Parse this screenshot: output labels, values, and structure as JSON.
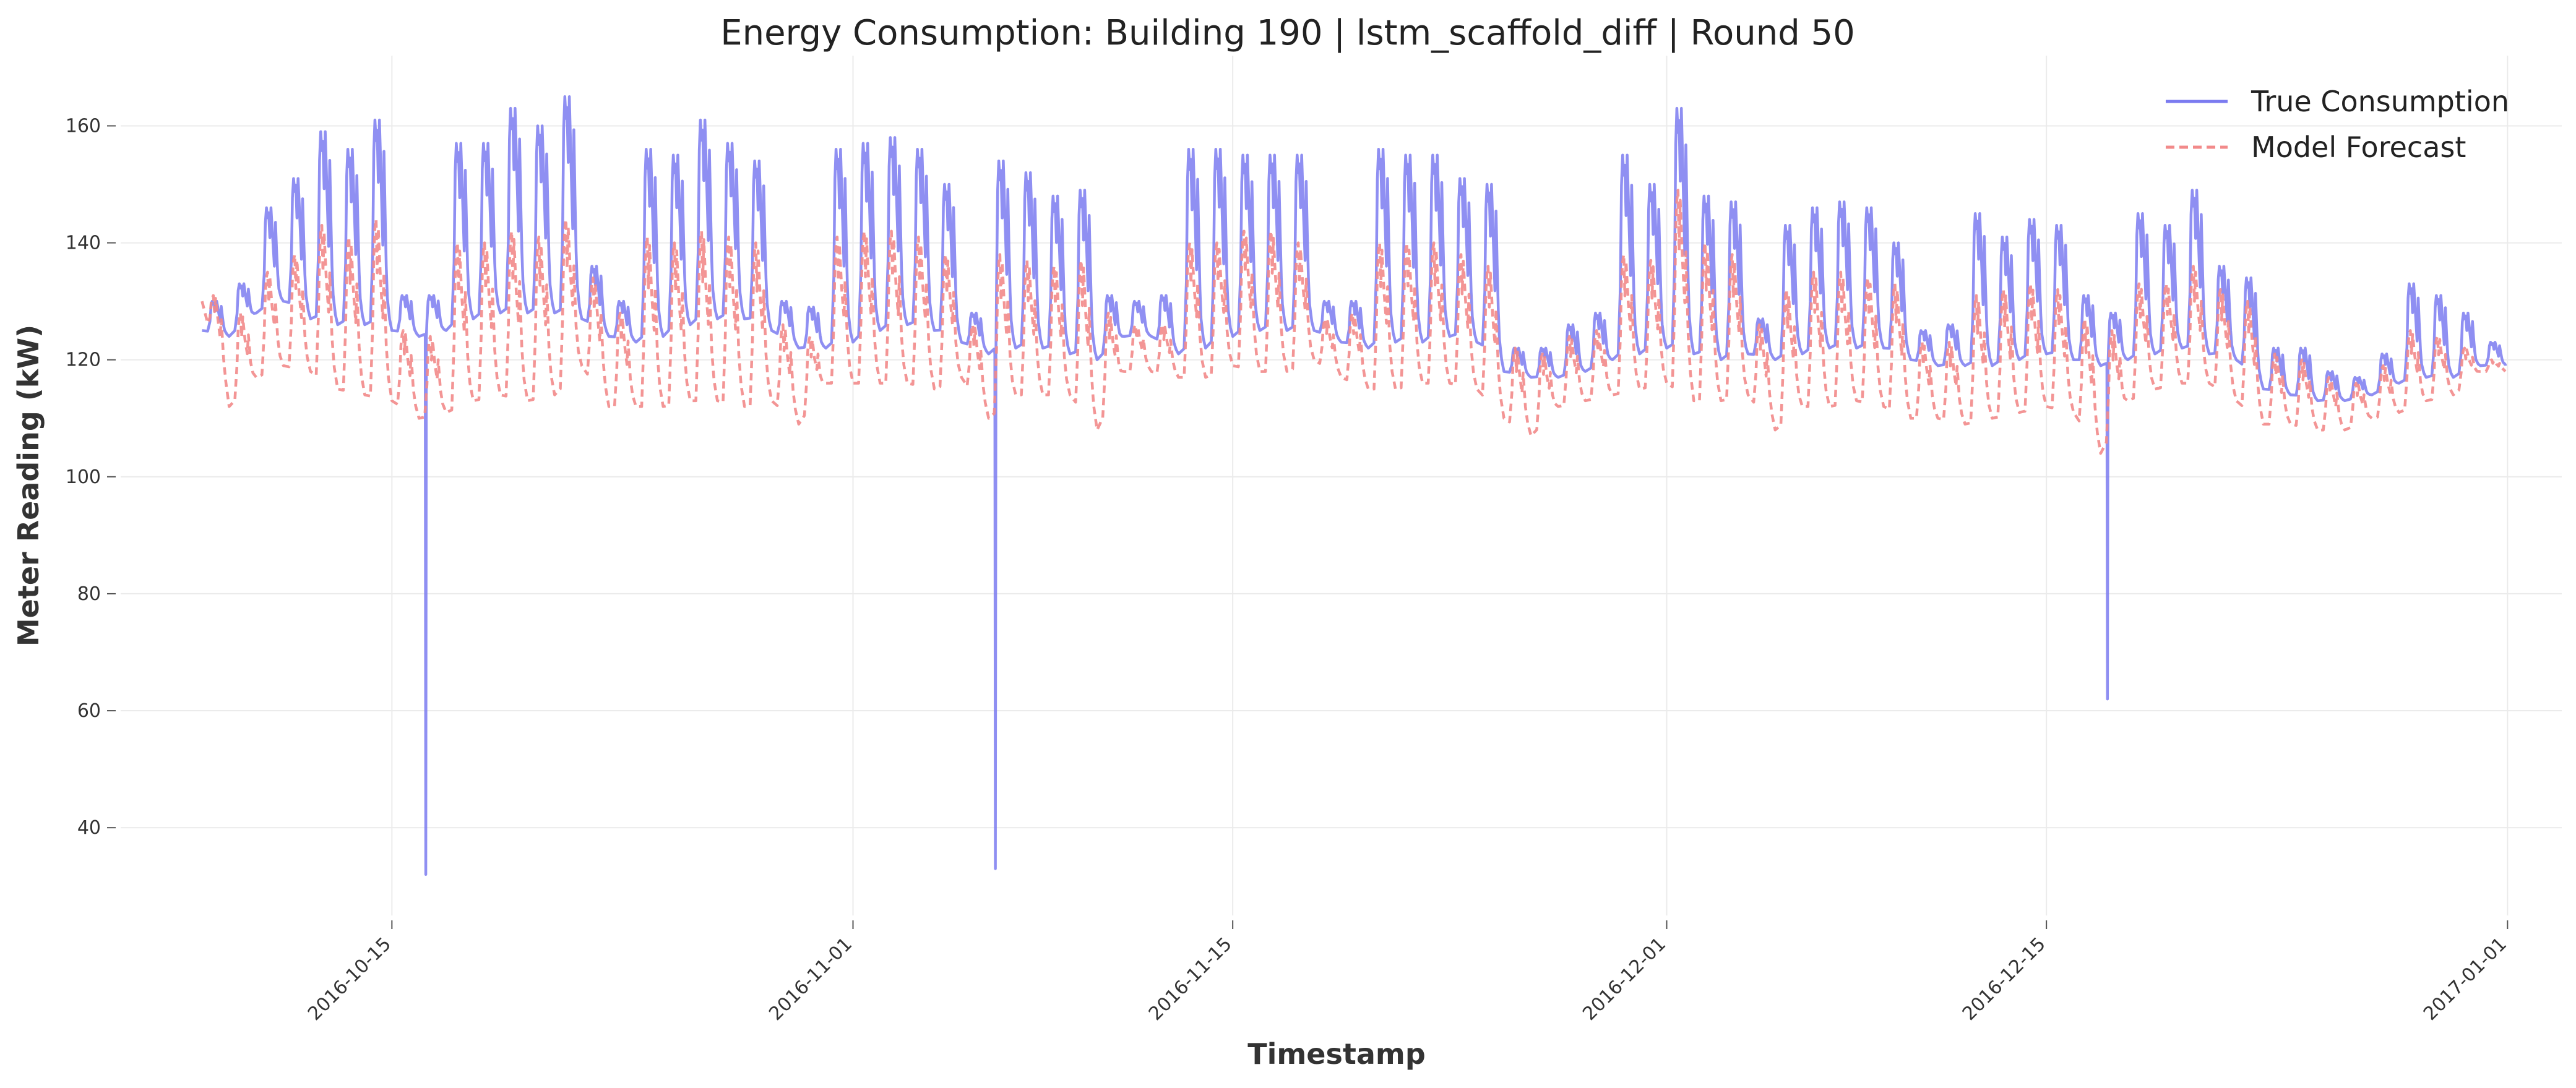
{
  "chart_data": {
    "type": "line",
    "title": "Energy Consumption: Building 190 | lstm_scaffold_diff | Round 50",
    "xlabel": "Timestamp",
    "ylabel": "Meter Reading (kW)",
    "x_range": [
      "2016-10-05",
      "2017-01-03"
    ],
    "ylim": [
      25,
      172
    ],
    "y_ticks": [
      40,
      60,
      80,
      100,
      120,
      140,
      160
    ],
    "x_ticks": [
      "2016-10-15",
      "2016-11-01",
      "2016-11-15",
      "2016-12-01",
      "2016-12-15",
      "2017-01-01"
    ],
    "grid": true,
    "legend_position": "top-right",
    "colors": {
      "true": "#7b7bf0",
      "forecast": "#f28a8a"
    },
    "series": [
      {
        "name": "True Consumption",
        "style": "solid",
        "x": [
          "2016-10-08",
          "2016-10-09",
          "2016-10-10",
          "2016-10-11",
          "2016-10-12",
          "2016-10-13",
          "2016-10-14",
          "2016-10-15",
          "2016-10-16",
          "2016-10-17",
          "2016-10-18",
          "2016-10-19",
          "2016-10-20",
          "2016-10-21",
          "2016-10-22",
          "2016-10-23",
          "2016-10-24",
          "2016-10-25",
          "2016-10-26",
          "2016-10-27",
          "2016-10-28",
          "2016-10-29",
          "2016-10-30",
          "2016-10-31",
          "2016-11-01",
          "2016-11-02",
          "2016-11-03",
          "2016-11-04",
          "2016-11-05",
          "2016-11-06",
          "2016-11-07",
          "2016-11-08",
          "2016-11-09",
          "2016-11-10",
          "2016-11-11",
          "2016-11-12",
          "2016-11-13",
          "2016-11-14",
          "2016-11-15",
          "2016-11-16",
          "2016-11-17",
          "2016-11-18",
          "2016-11-19",
          "2016-11-20",
          "2016-11-21",
          "2016-11-22",
          "2016-11-23",
          "2016-11-24",
          "2016-11-25",
          "2016-11-26",
          "2016-11-27",
          "2016-11-28",
          "2016-11-29",
          "2016-11-30",
          "2016-12-01",
          "2016-12-02",
          "2016-12-03",
          "2016-12-04",
          "2016-12-05",
          "2016-12-06",
          "2016-12-07",
          "2016-12-08",
          "2016-12-09",
          "2016-12-10",
          "2016-12-11",
          "2016-12-12",
          "2016-12-13",
          "2016-12-14",
          "2016-12-15",
          "2016-12-16",
          "2016-12-17",
          "2016-12-18",
          "2016-12-19",
          "2016-12-20",
          "2016-12-21",
          "2016-12-22",
          "2016-12-23",
          "2016-12-24",
          "2016-12-25",
          "2016-12-26",
          "2016-12-27",
          "2016-12-28",
          "2016-12-29",
          "2016-12-30",
          "2016-12-31"
        ],
        "daily_peak": [
          130,
          133,
          146,
          151,
          159,
          156,
          161,
          131,
          131,
          157,
          157,
          163,
          160,
          165,
          136,
          130,
          156,
          155,
          161,
          157,
          154,
          130,
          129,
          156,
          157,
          158,
          156,
          150,
          128,
          154,
          152,
          148,
          149,
          131,
          130,
          131,
          156,
          156,
          155,
          155,
          155,
          130,
          130,
          156,
          155,
          155,
          151,
          150,
          122,
          122,
          126,
          128,
          155,
          150,
          163,
          148,
          147,
          127,
          143,
          146,
          147,
          146,
          140,
          125,
          126,
          145,
          141,
          144,
          143,
          131,
          128,
          145,
          143,
          149,
          136,
          134,
          122,
          122,
          118,
          117,
          121,
          133,
          131,
          128,
          123
        ],
        "daily_base": [
          125,
          124,
          128,
          130,
          127,
          126,
          126,
          125,
          124,
          125,
          127,
          128,
          128,
          128,
          127,
          124,
          123,
          124,
          126,
          127,
          127,
          125,
          122,
          122,
          123,
          125,
          126,
          125,
          123,
          121,
          122,
          122,
          121,
          120,
          124,
          124,
          121,
          122,
          124,
          125,
          125,
          125,
          123,
          122,
          123,
          123,
          124,
          123,
          118,
          117,
          117,
          118,
          120,
          121,
          122,
          121,
          120,
          121,
          120,
          121,
          122,
          122,
          122,
          120,
          119,
          119,
          119,
          120,
          121,
          120,
          119,
          120,
          121,
          122,
          121,
          120,
          115,
          114,
          113,
          113,
          114,
          116,
          117,
          117,
          119
        ],
        "outliers": [
          {
            "x": "2016-10-16",
            "y": 32
          },
          {
            "x": "2016-11-06",
            "y": 33
          },
          {
            "x": "2016-12-17",
            "y": 62
          }
        ]
      },
      {
        "name": "Model Forecast",
        "style": "dashed",
        "x": [
          "2016-10-08",
          "2016-10-09",
          "2016-10-10",
          "2016-10-11",
          "2016-10-12",
          "2016-10-13",
          "2016-10-14",
          "2016-10-15",
          "2016-10-16",
          "2016-10-17",
          "2016-10-18",
          "2016-10-19",
          "2016-10-20",
          "2016-10-21",
          "2016-10-22",
          "2016-10-23",
          "2016-10-24",
          "2016-10-25",
          "2016-10-26",
          "2016-10-27",
          "2016-10-28",
          "2016-10-29",
          "2016-10-30",
          "2016-10-31",
          "2016-11-01",
          "2016-11-02",
          "2016-11-03",
          "2016-11-04",
          "2016-11-05",
          "2016-11-06",
          "2016-11-07",
          "2016-11-08",
          "2016-11-09",
          "2016-11-10",
          "2016-11-11",
          "2016-11-12",
          "2016-11-13",
          "2016-11-14",
          "2016-11-15",
          "2016-11-16",
          "2016-11-17",
          "2016-11-18",
          "2016-11-19",
          "2016-11-20",
          "2016-11-21",
          "2016-11-22",
          "2016-11-23",
          "2016-11-24",
          "2016-11-25",
          "2016-11-26",
          "2016-11-27",
          "2016-11-28",
          "2016-11-29",
          "2016-11-30",
          "2016-12-01",
          "2016-12-02",
          "2016-12-03",
          "2016-12-04",
          "2016-12-05",
          "2016-12-06",
          "2016-12-07",
          "2016-12-08",
          "2016-12-09",
          "2016-12-10",
          "2016-12-11",
          "2016-12-12",
          "2016-12-13",
          "2016-12-14",
          "2016-12-15",
          "2016-12-16",
          "2016-12-17",
          "2016-12-18",
          "2016-12-19",
          "2016-12-20",
          "2016-12-21",
          "2016-12-22",
          "2016-12-23",
          "2016-12-24",
          "2016-12-25",
          "2016-12-26",
          "2016-12-27",
          "2016-12-28",
          "2016-12-29",
          "2016-12-30",
          "2016-12-31"
        ],
        "daily_peak": [
          131,
          128,
          135,
          138,
          143,
          141,
          144,
          125,
          124,
          140,
          140,
          142,
          141,
          144,
          134,
          128,
          141,
          140,
          142,
          141,
          140,
          126,
          124,
          141,
          142,
          142,
          141,
          138,
          126,
          138,
          137,
          136,
          137,
          128,
          126,
          126,
          140,
          140,
          142,
          142,
          140,
          127,
          128,
          140,
          140,
          140,
          138,
          136,
          122,
          121,
          124,
          125,
          138,
          137,
          149,
          140,
          138,
          126,
          132,
          135,
          135,
          134,
          133,
          123,
          123,
          131,
          132,
          133,
          132,
          127,
          125,
          133,
          133,
          136,
          132,
          130,
          121,
          120,
          117,
          116,
          119,
          125,
          124,
          122,
          120
        ],
        "daily_base": [
          130,
          112,
          117,
          119,
          118,
          115,
          114,
          113,
          110,
          111,
          113,
          114,
          113,
          114,
          119,
          112,
          112,
          112,
          113,
          113,
          112,
          113,
          109,
          116,
          116,
          116,
          116,
          115,
          117,
          110,
          114,
          114,
          114,
          108,
          118,
          118,
          117,
          117,
          119,
          118,
          118,
          120,
          117,
          115,
          115,
          116,
          116,
          115,
          110,
          107,
          112,
          113,
          114,
          115,
          116,
          113,
          113,
          114,
          108,
          112,
          112,
          113,
          112,
          110,
          110,
          109,
          110,
          111,
          112,
          111,
          104,
          113,
          115,
          116,
          116,
          113,
          109,
          109,
          108,
          108,
          110,
          111,
          113,
          114,
          118
        ]
      }
    ]
  }
}
